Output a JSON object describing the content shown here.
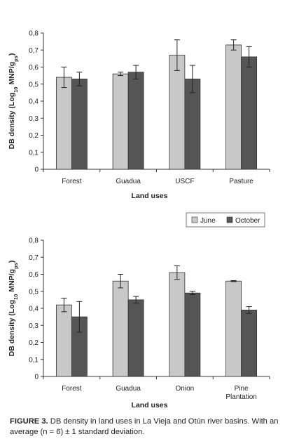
{
  "chart_data": [
    {
      "type": "bar",
      "ylabel": "DB density (Log10 MNP/gps)",
      "xlabel": "Land uses",
      "ylim": [
        0,
        0.8
      ],
      "yticks": [
        "0",
        "0,1",
        "0,2",
        "0,3",
        "0,4",
        "0,5",
        "0,6",
        "0,7",
        "0,8"
      ],
      "categories": [
        "Forest",
        "Guadua",
        "USCF",
        "Pasture"
      ],
      "series": [
        {
          "name": "June",
          "color": "#c8c8c8",
          "values": [
            0.54,
            0.56,
            0.67,
            0.73
          ],
          "errors": [
            0.06,
            0.01,
            0.09,
            0.03
          ]
        },
        {
          "name": "October",
          "color": "#555555",
          "values": [
            0.53,
            0.57,
            0.53,
            0.66
          ],
          "errors": [
            0.04,
            0.04,
            0.08,
            0.06
          ]
        }
      ],
      "grid": false,
      "legend": "none"
    },
    {
      "type": "bar",
      "ylabel": "DB density (Log10 MNP/gps)",
      "xlabel": "Land uses",
      "ylim": [
        0,
        0.8
      ],
      "yticks": [
        "0",
        "0,1",
        "0,2",
        "0,3",
        "0,4",
        "0,5",
        "0,6",
        "0,7",
        "0,8"
      ],
      "categories": [
        "Forest",
        "Guadua",
        "Onion",
        "Pine|Plantation"
      ],
      "series": [
        {
          "name": "June",
          "color": "#c8c8c8",
          "values": [
            0.42,
            0.56,
            0.61,
            0.56
          ],
          "errors": [
            0.04,
            0.04,
            0.04,
            0.003
          ]
        },
        {
          "name": "October",
          "color": "#555555",
          "values": [
            0.35,
            0.45,
            0.49,
            0.39
          ],
          "errors": [
            0.09,
            0.02,
            0.01,
            0.02
          ]
        }
      ],
      "grid": false,
      "legend": "top-right"
    }
  ],
  "caption": {
    "label": "FIGURE 3.",
    "text": " DB density in land uses in La Vieja and Otún river basins. With an average (n = 6) ± 1 standard deviation."
  }
}
